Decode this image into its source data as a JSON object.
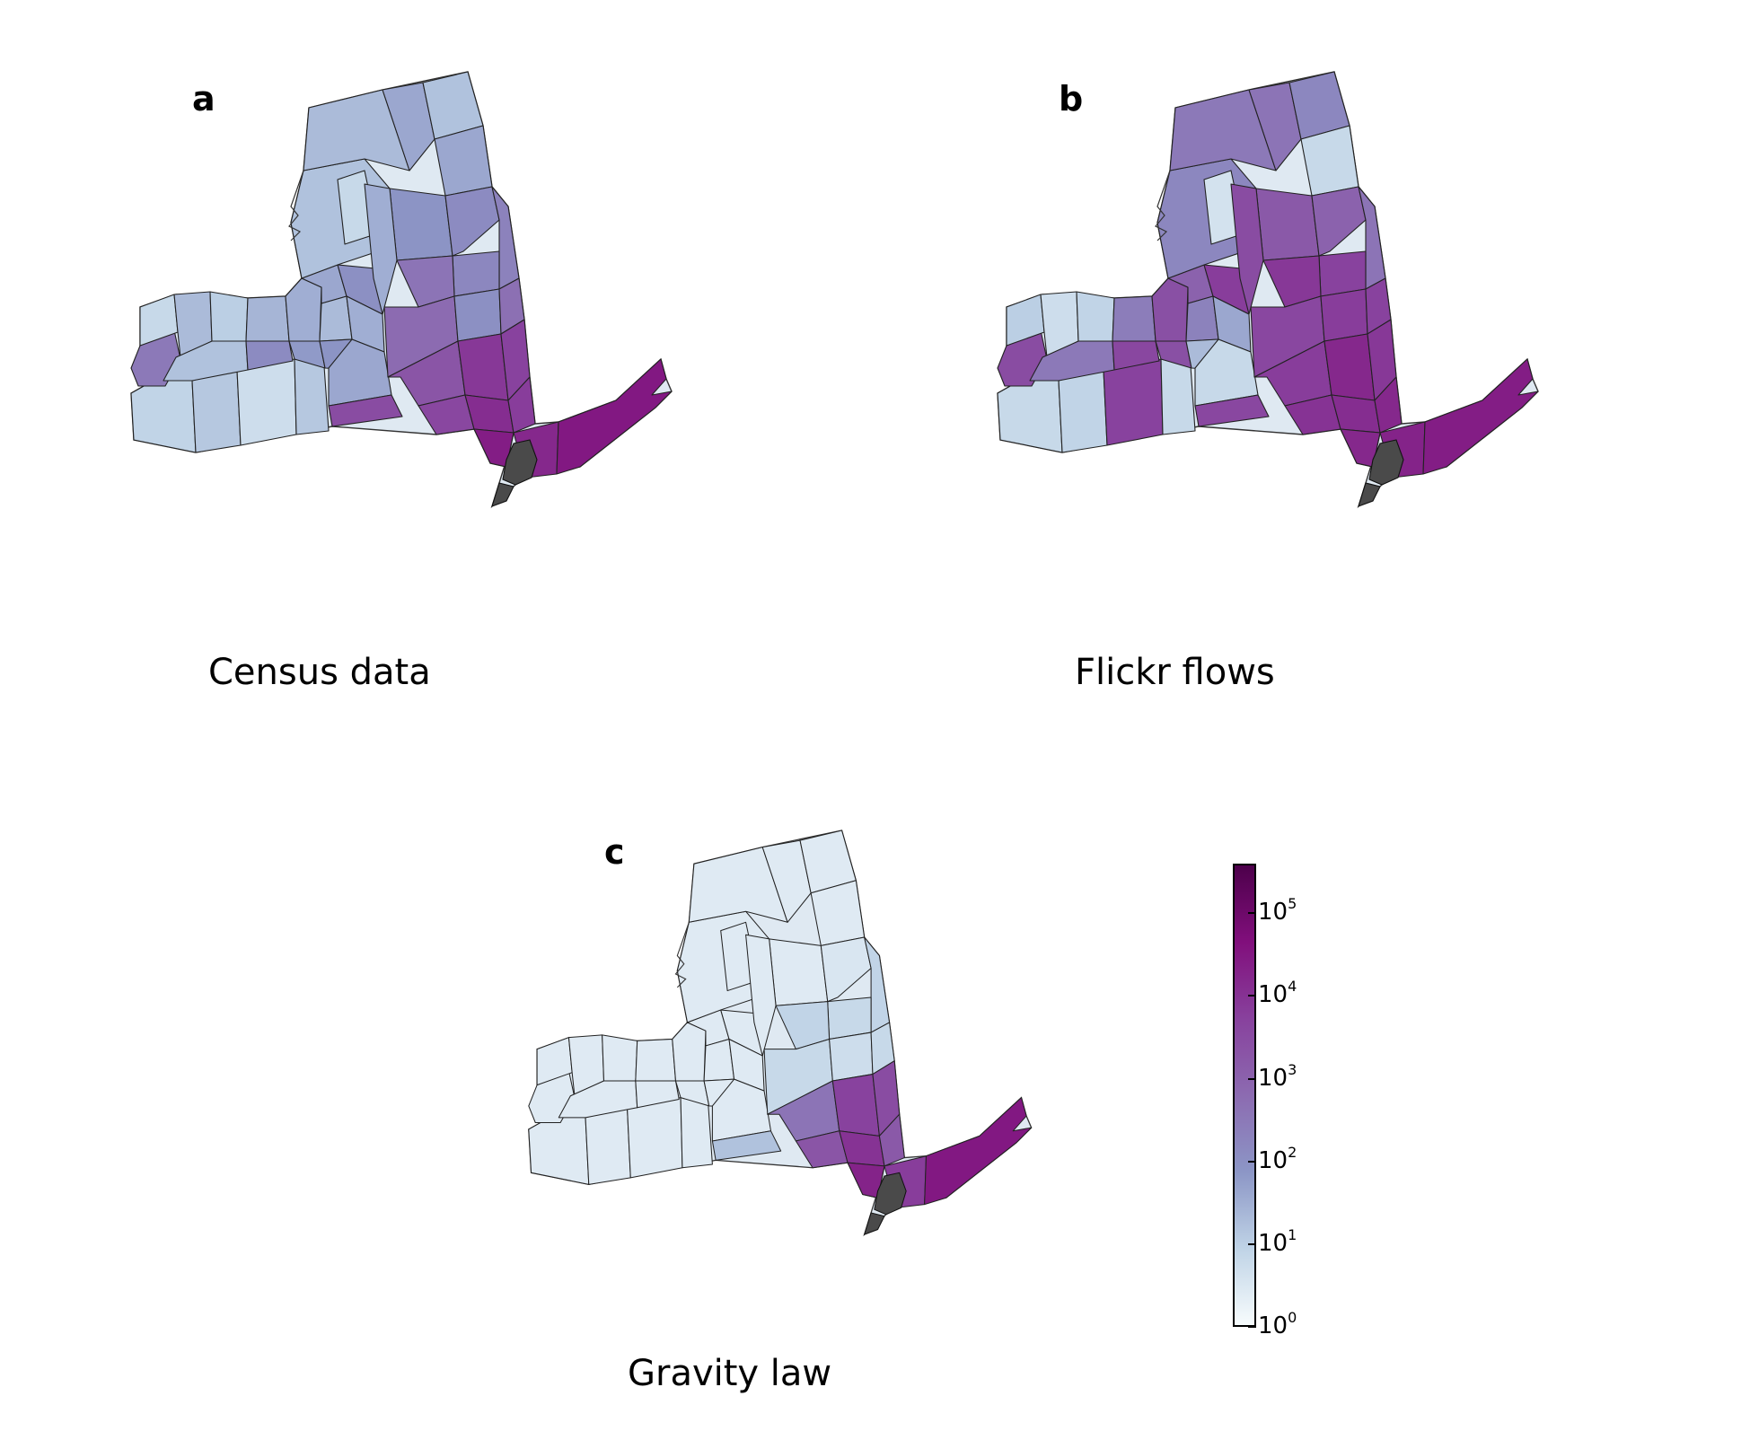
{
  "panels": [
    {
      "letter": "a",
      "caption": "Census data",
      "region_levels": {
        "west": [
          0.9,
          1.1,
          0.7,
          1.1,
          2.5,
          0.8,
          1.3,
          1.0,
          1.2
        ],
        "central": [
          1.4,
          1.5,
          2.1,
          1.8,
          1.6,
          1.3,
          1.9,
          2.0,
          1.5,
          1.6
        ],
        "north": [
          1.2,
          1.3,
          1.6,
          1.2,
          1.6,
          0.8,
          1.9,
          1.5,
          2.1,
          2.3
        ],
        "east": [
          2.2,
          2.6,
          2.8,
          2.0,
          2.7
        ],
        "south": [
          3.3,
          3.6,
          3.9,
          4.1,
          4.4,
          3.7,
          3.5,
          3.8
        ],
        "long_island": [
          4.2,
          4.5
        ],
        "nyc": "#4a4a4a"
      }
    },
    {
      "letter": "b",
      "caption": "Flickr flows",
      "region_levels": {
        "west": [
          0.8,
          0.9,
          3.7,
          0.8,
          3.5,
          1.0,
          0.7,
          0.9,
          2.5
        ],
        "central": [
          2.4,
          3.4,
          3.6,
          3.4,
          3.0,
          2.3,
          1.3,
          3.8,
          1.6,
          0.8
        ],
        "north": [
          2.2,
          2.5,
          2.6,
          2.2,
          0.8,
          0.6,
          3.2,
          3.5,
          3.0,
          2.6
        ],
        "east": [
          3.7,
          3.9,
          3.6,
          3.8,
          3.7
        ],
        "south": [
          3.8,
          4.0,
          4.2,
          4.1,
          4.2,
          3.9,
          3.6,
          4.2
        ],
        "long_island": [
          4.3,
          4.4
        ],
        "nyc": "#4a4a4a"
      }
    },
    {
      "letter": "c",
      "caption": "Gravity law",
      "region_levels": {
        "west": [
          0.4,
          0.4,
          0.4,
          0.4,
          0.4,
          0.4,
          0.4,
          0.4,
          0.4
        ],
        "central": [
          0.4,
          0.4,
          0.4,
          0.4,
          0.4,
          0.4,
          0.4,
          0.4,
          0.4,
          0.4
        ],
        "north": [
          0.4,
          0.4,
          0.4,
          0.4,
          0.4,
          0.4,
          0.4,
          0.4,
          0.5,
          0.9
        ],
        "east": [
          0.8,
          0.9,
          0.8,
          0.7,
          0.8
        ],
        "south": [
          2.6,
          3.3,
          3.7,
          4.0,
          4.3,
          3.5,
          1.2,
          3.2
        ],
        "long_island": [
          3.8,
          4.5
        ],
        "nyc": "#4a4a4a"
      }
    }
  ],
  "colorbar": {
    "scale": "log",
    "min_exponent": 0,
    "max_exponent": 5.6,
    "ticks": [
      {
        "base": "10",
        "exp": "0",
        "value": 0
      },
      {
        "base": "10",
        "exp": "1",
        "value": 1
      },
      {
        "base": "10",
        "exp": "2",
        "value": 2
      },
      {
        "base": "10",
        "exp": "3",
        "value": 3
      },
      {
        "base": "10",
        "exp": "4",
        "value": 4
      },
      {
        "base": "10",
        "exp": "5",
        "value": 5
      }
    ],
    "colors": [
      "#f7fcfd",
      "#bfd3e6",
      "#8c96c6",
      "#8c6bb1",
      "#88419d",
      "#810f7c",
      "#4d004b"
    ]
  }
}
